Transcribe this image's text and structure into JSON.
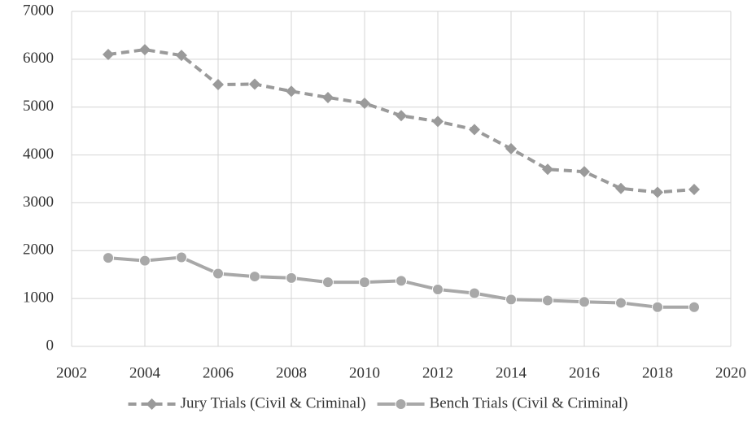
{
  "chart_data": {
    "type": "line",
    "x": [
      2003,
      2004,
      2005,
      2006,
      2007,
      2008,
      2009,
      2010,
      2011,
      2012,
      2013,
      2014,
      2015,
      2016,
      2017,
      2018,
      2019
    ],
    "series": [
      {
        "name": "Jury Trials (Civil & Criminal)",
        "color": "#9a9a9a",
        "dash": true,
        "marker": "diamond",
        "values": [
          6100,
          6200,
          6080,
          5470,
          5480,
          5330,
          5200,
          5080,
          4820,
          4700,
          4530,
          4130,
          3700,
          3650,
          3300,
          3220,
          3280
        ]
      },
      {
        "name": "Bench Trials (Civil & Criminal)",
        "color": "#a8a8a8",
        "dash": false,
        "marker": "circle",
        "values": [
          1850,
          1790,
          1860,
          1520,
          1460,
          1430,
          1340,
          1340,
          1370,
          1190,
          1110,
          980,
          960,
          930,
          910,
          820,
          820
        ]
      }
    ],
    "xlim": [
      2002,
      2020
    ],
    "xticks": [
      2002,
      2004,
      2006,
      2008,
      2010,
      2012,
      2014,
      2016,
      2018,
      2020
    ],
    "ylim": [
      0,
      7000
    ],
    "yticks": [
      0,
      1000,
      2000,
      3000,
      4000,
      5000,
      6000,
      7000
    ],
    "grid": true,
    "legend": "bottom"
  }
}
